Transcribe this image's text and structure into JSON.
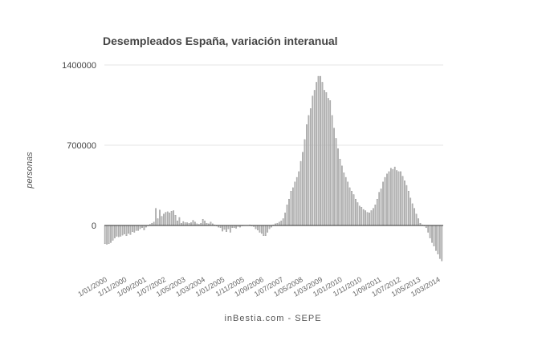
{
  "chart_data": {
    "type": "bar",
    "title": "Desempleados España, variación interanual",
    "ylabel": "personas",
    "xlabel": "",
    "source": "inBestia.com - SEPE",
    "ylim": [
      -330000,
      1400000
    ],
    "yticks": [
      0,
      700000,
      1400000
    ],
    "ytick_labels": [
      "0",
      "700000",
      "1400000"
    ],
    "grid": true,
    "x_start": "2000-01",
    "x_frequency": "monthly",
    "xtick_labels": [
      "1/01/2000",
      "1/11/2000",
      "1/09/2001",
      "1/07/2002",
      "1/05/2003",
      "1/03/2004",
      "1/01/2005",
      "1/11/2005",
      "1/09/2006",
      "1/07/2007",
      "1/05/2008",
      "1/03/2009",
      "1/01/2010",
      "1/11/2010",
      "1/09/2011",
      "1/07/2012",
      "1/05/2013",
      "1/03/2014"
    ],
    "values": [
      -160000,
      -165000,
      -160000,
      -150000,
      -130000,
      -110000,
      -95000,
      -100000,
      -95000,
      -85000,
      -75000,
      -90000,
      -70000,
      -80000,
      -55000,
      -60000,
      -45000,
      -45000,
      -30000,
      -20000,
      -40000,
      -15000,
      -5000,
      10000,
      20000,
      30000,
      150000,
      60000,
      135000,
      80000,
      100000,
      115000,
      120000,
      110000,
      125000,
      130000,
      90000,
      40000,
      70000,
      20000,
      35000,
      25000,
      25000,
      20000,
      25000,
      45000,
      30000,
      15000,
      10000,
      20000,
      55000,
      40000,
      20000,
      15000,
      30000,
      15000,
      5000,
      -5000,
      -15000,
      -20000,
      -50000,
      -35000,
      -55000,
      -30000,
      -60000,
      -20000,
      -20000,
      -25000,
      -10000,
      -15000,
      -5000,
      -3000,
      0,
      -3000,
      5000,
      -5000,
      -10000,
      -30000,
      -40000,
      -60000,
      -70000,
      -90000,
      -90000,
      -60000,
      -30000,
      -15000,
      5000,
      15000,
      20000,
      30000,
      40000,
      60000,
      110000,
      180000,
      230000,
      300000,
      330000,
      380000,
      420000,
      470000,
      560000,
      640000,
      750000,
      880000,
      960000,
      1020000,
      1130000,
      1180000,
      1250000,
      1302000,
      1302000,
      1250000,
      1180000,
      1160000,
      1110000,
      1090000,
      960000,
      850000,
      760000,
      670000,
      580000,
      520000,
      460000,
      420000,
      380000,
      330000,
      300000,
      270000,
      230000,
      200000,
      170000,
      160000,
      140000,
      130000,
      115000,
      110000,
      130000,
      150000,
      180000,
      230000,
      290000,
      320000,
      380000,
      420000,
      450000,
      470000,
      500000,
      490000,
      511000,
      480000,
      470000,
      470000,
      430000,
      390000,
      350000,
      300000,
      240000,
      190000,
      150000,
      100000,
      60000,
      20000,
      5000,
      -5000,
      -20000,
      -60000,
      -110000,
      -150000,
      -180000,
      -220000,
      -250000,
      -290000,
      -310000
    ],
    "colors": {
      "bar": "#b4b4b4",
      "bar_edge": "#8a8a8a",
      "axis": "#333333",
      "grid": "#e6e6e6",
      "text": "#444444"
    }
  }
}
